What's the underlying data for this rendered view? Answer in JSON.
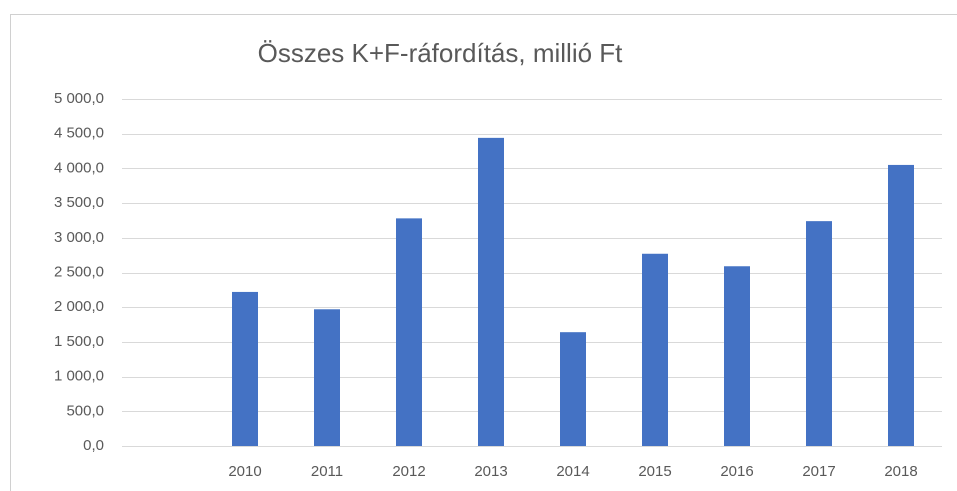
{
  "chart_data": {
    "type": "bar",
    "title": "Összes K+F-ráfordítás, millió Ft",
    "categories": [
      null,
      "2010",
      "2011",
      "2012",
      "2013",
      "2014",
      "2015",
      "2016",
      "2017",
      "2018"
    ],
    "values": [
      null,
      2220,
      1970,
      3280,
      4440,
      1640,
      2770,
      2590,
      3240,
      4050
    ],
    "color": "#4472c4",
    "ylim": [
      0,
      5000
    ],
    "yticks": [
      {
        "value": 0,
        "label": "0,0"
      },
      {
        "value": 500,
        "label": "500,0"
      },
      {
        "value": 1000,
        "label": "1 000,0"
      },
      {
        "value": 1500,
        "label": "1 500,0"
      },
      {
        "value": 2000,
        "label": "2 000,0"
      },
      {
        "value": 2500,
        "label": "2 500,0"
      },
      {
        "value": 3000,
        "label": "3 000,0"
      },
      {
        "value": 3500,
        "label": "3 500,0"
      },
      {
        "value": 4000,
        "label": "4 000,0"
      },
      {
        "value": 4500,
        "label": "4 500,0"
      },
      {
        "value": 5000,
        "label": "5 000,0"
      }
    ],
    "grid": true
  }
}
